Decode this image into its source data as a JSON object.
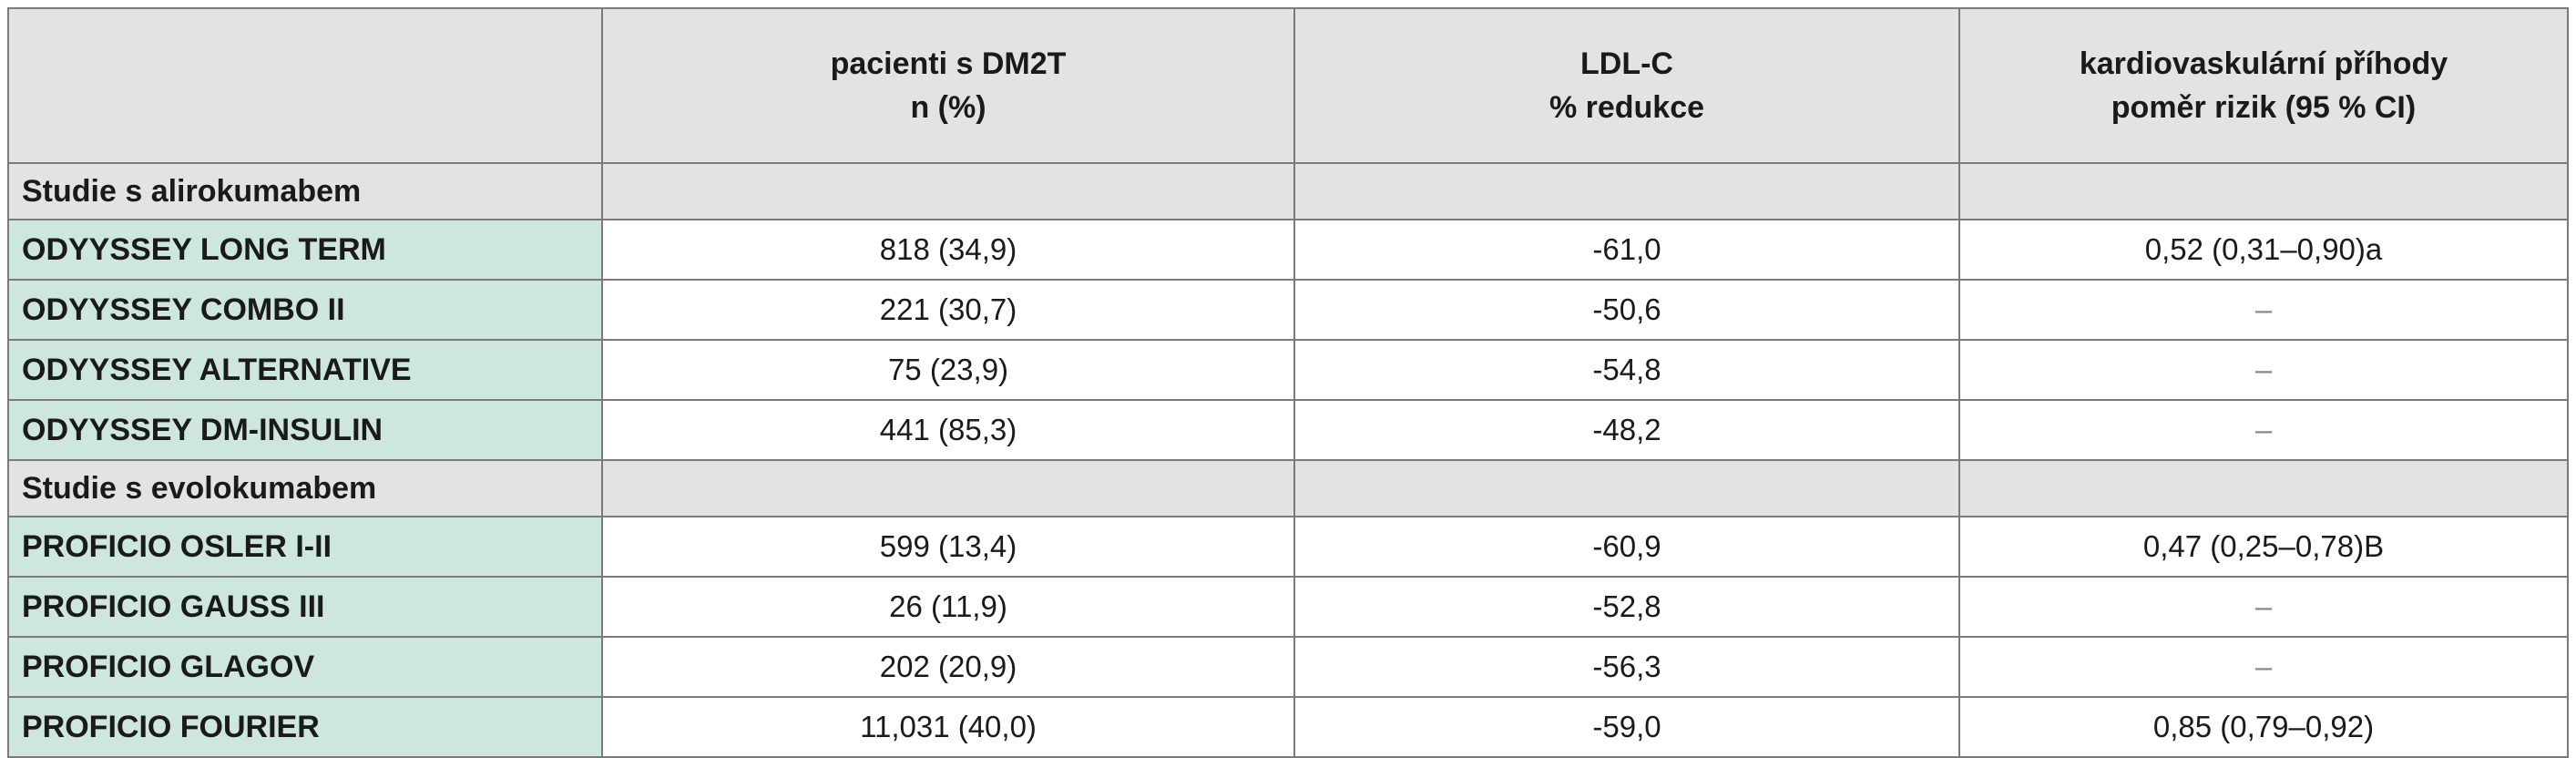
{
  "header": {
    "col0": "",
    "col1": {
      "line1": "pacienti s DM2T",
      "line2": "n (%)"
    },
    "col2": {
      "line1": "LDL-C",
      "line2": "% redukce"
    },
    "col3": {
      "line1": "kardiovaskulární příhody",
      "line2": "poměr rizik (95 % CI)"
    }
  },
  "sections": [
    {
      "title": "Studie s alirokumabem",
      "rows": [
        {
          "name": "ODYYSSEY LONG TERM",
          "patients": "818 (34,9)",
          "ldl": "-61,0",
          "cv": "0,52 (0,31–0,90)a"
        },
        {
          "name": "ODYYSSEY COMBO II",
          "patients": "221 (30,7)",
          "ldl": "-50,6",
          "cv": "–"
        },
        {
          "name": "ODYYSSEY ALTERNATIVE",
          "patients": "75 (23,9)",
          "ldl": "-54,8",
          "cv": "–"
        },
        {
          "name": "ODYYSSEY DM-INSULIN",
          "patients": "441 (85,3)",
          "ldl": "-48,2",
          "cv": "–"
        }
      ]
    },
    {
      "title": "Studie s evolokumabem",
      "rows": [
        {
          "name": "PROFICIO OSLER I-II",
          "patients": "599 (13,4)",
          "ldl": "-60,9",
          "cv": "0,47 (0,25–0,78)B"
        },
        {
          "name": "PROFICIO GAUSS III",
          "patients": "26 (11,9)",
          "ldl": "-52,8",
          "cv": "–"
        },
        {
          "name": "PROFICIO GLAGOV",
          "patients": "202 (20,9)",
          "ldl": "-56,3",
          "cv": "–"
        },
        {
          "name": "PROFICIO FOURIER",
          "patients": "11,031 (40,0)",
          "ldl": "-59,0",
          "cv": "0,85 (0,79–0,92)"
        }
      ]
    }
  ]
}
